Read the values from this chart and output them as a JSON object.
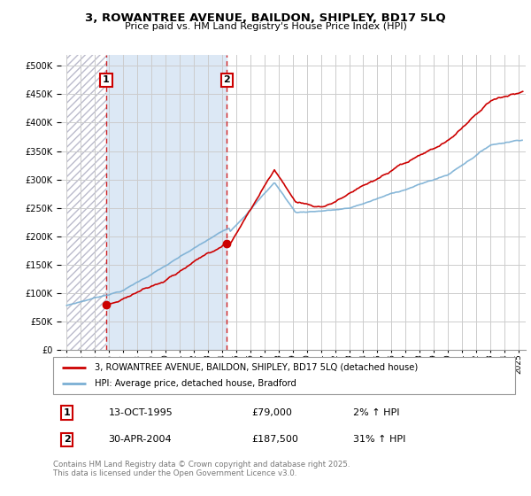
{
  "title_line1": "3, ROWANTREE AVENUE, BAILDON, SHIPLEY, BD17 5LQ",
  "title_line2": "Price paid vs. HM Land Registry's House Price Index (HPI)",
  "ylim": [
    0,
    520000
  ],
  "yticks": [
    0,
    50000,
    100000,
    150000,
    200000,
    250000,
    300000,
    350000,
    400000,
    450000,
    500000
  ],
  "ytick_labels": [
    "£0",
    "£50K",
    "£100K",
    "£150K",
    "£200K",
    "£250K",
    "£300K",
    "£350K",
    "£400K",
    "£450K",
    "£500K"
  ],
  "sale1_date": 1995.79,
  "sale1_price": 79000,
  "sale2_date": 2004.33,
  "sale2_price": 187500,
  "legend_label_red": "3, ROWANTREE AVENUE, BAILDON, SHIPLEY, BD17 5LQ (detached house)",
  "legend_label_blue": "HPI: Average price, detached house, Bradford",
  "annotation1_date": "13-OCT-1995",
  "annotation1_price": "£79,000",
  "annotation1_change": "2% ↑ HPI",
  "annotation2_date": "30-APR-2004",
  "annotation2_price": "£187,500",
  "annotation2_change": "31% ↑ HPI",
  "footer": "Contains HM Land Registry data © Crown copyright and database right 2025.\nThis data is licensed under the Open Government Licence v3.0.",
  "red_color": "#cc0000",
  "blue_color": "#7aafd4",
  "grid_color": "#cccccc",
  "box_color": "#cc0000",
  "shaded_bg": "#dce8f5",
  "hatch_bg": "#e8e8ee"
}
